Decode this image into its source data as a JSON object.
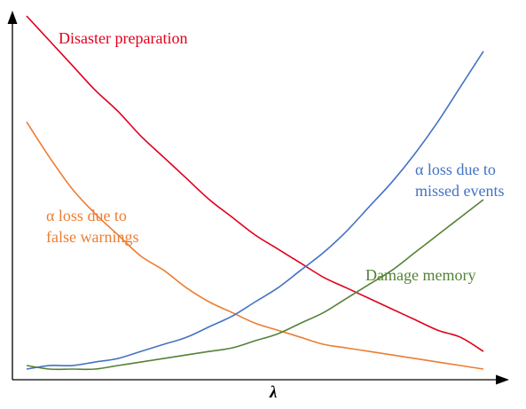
{
  "chart_data": {
    "type": "line",
    "title": "",
    "xlabel": "λ",
    "ylabel": "",
    "grid": false,
    "legend": "none",
    "xlim": [
      0,
      1
    ],
    "ylim": [
      0,
      1
    ],
    "series": [
      {
        "name": "Disaster preparation",
        "label_lines": [
          "Disaster preparation"
        ],
        "color": "#e0001b",
        "x": [
          0.0,
          0.05,
          0.1,
          0.15,
          0.2,
          0.25,
          0.3,
          0.35,
          0.4,
          0.45,
          0.5,
          0.55,
          0.6,
          0.65,
          0.7,
          0.75,
          0.8,
          0.85,
          0.9,
          0.95,
          1.0
        ],
        "y": [
          1.0,
          0.93,
          0.86,
          0.79,
          0.73,
          0.66,
          0.6,
          0.54,
          0.48,
          0.43,
          0.38,
          0.34,
          0.3,
          0.26,
          0.23,
          0.2,
          0.17,
          0.14,
          0.11,
          0.09,
          0.05
        ]
      },
      {
        "name": "α loss due to false warnings",
        "label_lines": [
          "α loss due to",
          "false warnings"
        ],
        "color": "#ed7d31",
        "x": [
          0.0,
          0.05,
          0.1,
          0.15,
          0.2,
          0.25,
          0.3,
          0.35,
          0.4,
          0.45,
          0.5,
          0.55,
          0.6,
          0.65,
          0.7,
          0.75,
          0.8,
          0.85,
          0.9,
          0.95,
          1.0
        ],
        "y": [
          0.7,
          0.6,
          0.51,
          0.44,
          0.38,
          0.32,
          0.28,
          0.23,
          0.19,
          0.16,
          0.13,
          0.11,
          0.09,
          0.07,
          0.06,
          0.05,
          0.04,
          0.03,
          0.02,
          0.01,
          0.0
        ]
      },
      {
        "name": "α loss due to missed events",
        "label_lines": [
          "α loss due to",
          "missed events"
        ],
        "color": "#4472c4",
        "x": [
          0.0,
          0.05,
          0.1,
          0.15,
          0.2,
          0.25,
          0.3,
          0.35,
          0.4,
          0.45,
          0.5,
          0.55,
          0.6,
          0.65,
          0.7,
          0.75,
          0.8,
          0.85,
          0.9,
          0.95,
          1.0
        ],
        "y": [
          0.0,
          0.01,
          0.01,
          0.02,
          0.03,
          0.05,
          0.07,
          0.09,
          0.12,
          0.15,
          0.19,
          0.23,
          0.28,
          0.33,
          0.39,
          0.46,
          0.53,
          0.61,
          0.7,
          0.8,
          0.9
        ]
      },
      {
        "name": "Damage memory",
        "label_lines": [
          "Damage memory"
        ],
        "color": "#548235",
        "x": [
          0.0,
          0.05,
          0.1,
          0.15,
          0.2,
          0.25,
          0.3,
          0.35,
          0.4,
          0.45,
          0.5,
          0.55,
          0.6,
          0.65,
          0.7,
          0.75,
          0.8,
          0.85,
          0.9,
          0.95,
          1.0
        ],
        "y": [
          0.01,
          0.0,
          0.0,
          0.0,
          0.01,
          0.02,
          0.03,
          0.04,
          0.05,
          0.06,
          0.08,
          0.1,
          0.13,
          0.16,
          0.2,
          0.24,
          0.28,
          0.33,
          0.38,
          0.43,
          0.48
        ]
      }
    ]
  }
}
